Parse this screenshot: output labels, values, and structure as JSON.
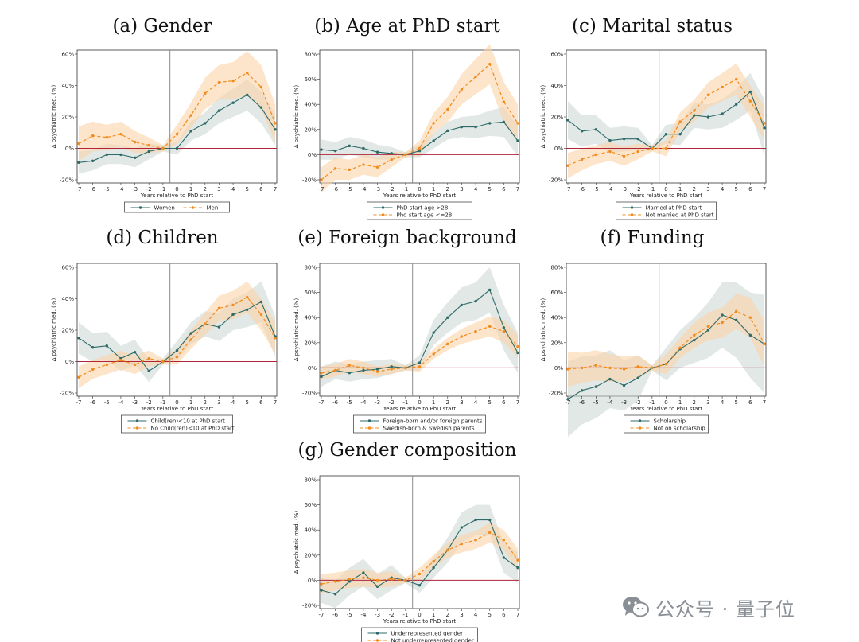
{
  "figure": {
    "xlabel": "Years relative to PhD start",
    "ylabel": "Δ psychiatric med. (%)",
    "x": [
      -7,
      -6,
      -5,
      -4,
      -3,
      -2,
      -1,
      0,
      1,
      2,
      3,
      4,
      5,
      6,
      7
    ],
    "event_line_x": -0.5,
    "colors": {
      "series_1": "#2e6b68",
      "series_2": "#f28c1e",
      "band_1": "#c9d6d2",
      "band_2": "#fbd3a8",
      "zero_line": "#b0233a",
      "event_line": "#8c8c8c",
      "frame": "#333333"
    }
  },
  "chart_data": [
    {
      "type": "line",
      "title": "(a) Gender",
      "ylim": [
        -20,
        60
      ],
      "yticks": [
        -20,
        0,
        20,
        40,
        60
      ],
      "series": [
        {
          "name": "Women",
          "values": [
            -9,
            -8,
            -4,
            -4,
            -6,
            -2,
            0,
            0,
            11,
            16,
            24,
            29,
            34,
            26,
            12
          ],
          "lower": [
            -16,
            -14,
            -10,
            -10,
            -12,
            -7,
            -2,
            -4,
            5,
            9,
            16,
            20,
            24,
            16,
            2
          ],
          "upper": [
            -2,
            -1,
            3,
            2,
            0,
            3,
            2,
            4,
            17,
            23,
            32,
            38,
            44,
            36,
            22
          ]
        },
        {
          "name": "Men",
          "values": [
            3,
            8,
            7,
            9,
            4,
            2,
            0,
            9,
            21,
            35,
            42,
            43,
            48,
            39,
            16
          ],
          "lower": [
            -8,
            -2,
            -1,
            1,
            -3,
            -3,
            -2,
            3,
            13,
            25,
            31,
            31,
            34,
            25,
            4
          ],
          "upper": [
            14,
            17,
            15,
            17,
            11,
            7,
            2,
            15,
            29,
            45,
            53,
            55,
            62,
            53,
            28
          ]
        }
      ]
    },
    {
      "type": "line",
      "title": "(b) Age at PhD start",
      "ylim": [
        -20,
        80
      ],
      "yticks": [
        -20,
        0,
        20,
        40,
        60,
        80
      ],
      "series": [
        {
          "name": "PhD start age >28",
          "values": [
            4,
            3,
            7,
            5,
            2,
            1,
            0,
            3,
            11,
            19,
            22,
            22,
            25,
            26,
            11
          ],
          "lower": [
            -4,
            -4,
            0,
            -2,
            -4,
            -4,
            -2,
            -2,
            5,
            12,
            14,
            13,
            15,
            14,
            -1
          ],
          "upper": [
            12,
            10,
            14,
            12,
            8,
            6,
            2,
            8,
            17,
            26,
            30,
            31,
            35,
            38,
            23
          ]
        },
        {
          "name": "Phd start age <=28",
          "values": [
            -20,
            -11,
            -12,
            -8,
            -10,
            -4,
            0,
            5,
            25,
            36,
            52,
            62,
            72,
            42,
            25
          ],
          "lower": [
            -30,
            -20,
            -20,
            -16,
            -18,
            -10,
            -2,
            -1,
            17,
            26,
            40,
            48,
            56,
            26,
            10
          ],
          "upper": [
            -10,
            -2,
            -4,
            0,
            -2,
            2,
            2,
            11,
            33,
            46,
            64,
            76,
            88,
            58,
            40
          ]
        }
      ]
    },
    {
      "type": "line",
      "title": "(c) Marital status",
      "ylim": [
        -20,
        60
      ],
      "yticks": [
        -20,
        0,
        20,
        40,
        60
      ],
      "series": [
        {
          "name": "Married at PhD start",
          "values": [
            18,
            11,
            12,
            5,
            6,
            6,
            0,
            9,
            9,
            21,
            20,
            22,
            28,
            36,
            13
          ],
          "lower": [
            6,
            1,
            3,
            -3,
            -2,
            -1,
            -2,
            3,
            2,
            13,
            12,
            13,
            18,
            24,
            -5
          ],
          "upper": [
            30,
            21,
            21,
            13,
            14,
            13,
            2,
            15,
            16,
            29,
            28,
            31,
            38,
            48,
            31
          ]
        },
        {
          "name": "Not married at PhD start",
          "values": [
            -11,
            -7,
            -4,
            -2,
            -5,
            -2,
            0,
            0,
            17,
            24,
            34,
            39,
            44,
            30,
            16
          ],
          "lower": [
            -19,
            -14,
            -10,
            -8,
            -11,
            -7,
            -2,
            -5,
            11,
            17,
            26,
            30,
            34,
            20,
            5
          ],
          "upper": [
            -3,
            0,
            2,
            4,
            1,
            3,
            2,
            5,
            23,
            31,
            42,
            48,
            54,
            40,
            27
          ]
        }
      ]
    },
    {
      "type": "line",
      "title": "(d) Children",
      "ylim": [
        -20,
        60
      ],
      "yticks": [
        -20,
        0,
        20,
        40,
        60
      ],
      "series": [
        {
          "name": "Child(ren)<10 at PhD start",
          "values": [
            15,
            9,
            10,
            2,
            6,
            -6,
            0,
            7,
            18,
            24,
            22,
            30,
            33,
            38,
            16
          ],
          "lower": [
            5,
            0,
            1,
            -6,
            -2,
            -13,
            -2,
            1,
            11,
            16,
            13,
            20,
            22,
            25,
            3
          ],
          "upper": [
            25,
            18,
            19,
            10,
            14,
            1,
            2,
            13,
            25,
            32,
            31,
            40,
            44,
            51,
            29
          ]
        },
        {
          "name": "No Child(ren)<10 at PhD start",
          "values": [
            -10,
            -5,
            -2,
            1,
            -2,
            2,
            0,
            3,
            14,
            24,
            34,
            36,
            41,
            30,
            15
          ],
          "lower": [
            -17,
            -11,
            -8,
            -5,
            -8,
            -3,
            -2,
            -2,
            8,
            17,
            26,
            27,
            31,
            20,
            5
          ],
          "upper": [
            -3,
            1,
            4,
            7,
            4,
            7,
            2,
            8,
            20,
            31,
            42,
            45,
            51,
            40,
            25
          ]
        }
      ]
    },
    {
      "type": "line",
      "title": "(e) Foreign background",
      "ylim": [
        -20,
        80
      ],
      "yticks": [
        -20,
        0,
        20,
        40,
        60,
        80
      ],
      "series": [
        {
          "name": "Foreign-born and/or foreign parents",
          "values": [
            -7,
            -2,
            -4,
            -2,
            -1,
            1,
            0,
            4,
            28,
            40,
            50,
            53,
            62,
            32,
            12
          ],
          "lower": [
            -15,
            -9,
            -11,
            -9,
            -8,
            -5,
            -2,
            -2,
            18,
            28,
            36,
            38,
            44,
            14,
            -4
          ],
          "upper": [
            1,
            5,
            3,
            5,
            6,
            7,
            2,
            10,
            38,
            52,
            64,
            68,
            80,
            50,
            28
          ]
        },
        {
          "name": "Swedish-born & Swedish parents",
          "values": [
            -4,
            -2,
            2,
            0,
            -3,
            -1,
            0,
            1,
            11,
            19,
            25,
            29,
            33,
            29,
            17
          ],
          "lower": [
            -9,
            -7,
            -3,
            -5,
            -7,
            -5,
            -2,
            -3,
            7,
            14,
            19,
            22,
            25,
            20,
            8
          ],
          "upper": [
            1,
            3,
            7,
            5,
            1,
            3,
            2,
            5,
            15,
            24,
            31,
            36,
            41,
            38,
            26
          ]
        }
      ]
    },
    {
      "type": "line",
      "title": "(f) Funding",
      "ylim": [
        -20,
        80
      ],
      "yticks": [
        -20,
        0,
        20,
        40,
        60,
        80
      ],
      "series": [
        {
          "name": "Scholarship",
          "values": [
            -25,
            -18,
            -15,
            -9,
            -14,
            -8,
            0,
            3,
            15,
            22,
            30,
            42,
            38,
            26,
            19
          ],
          "lower": [
            -55,
            -45,
            -40,
            -32,
            -34,
            -26,
            -2,
            -10,
            0,
            4,
            8,
            16,
            8,
            -8,
            -20
          ],
          "upper": [
            5,
            9,
            10,
            14,
            6,
            10,
            2,
            16,
            30,
            40,
            52,
            68,
            68,
            60,
            58
          ]
        },
        {
          "name": "Not on scholarship",
          "values": [
            -1,
            0,
            2,
            0,
            -1,
            1,
            0,
            3,
            16,
            26,
            33,
            36,
            45,
            40,
            19
          ],
          "lower": [
            -15,
            -12,
            -10,
            -11,
            -11,
            -8,
            -2,
            -5,
            8,
            16,
            22,
            24,
            31,
            24,
            1
          ],
          "upper": [
            13,
            12,
            14,
            11,
            9,
            10,
            2,
            11,
            24,
            36,
            44,
            48,
            59,
            56,
            37
          ]
        }
      ]
    },
    {
      "type": "line",
      "title": "(g) Gender composition",
      "ylim": [
        -20,
        80
      ],
      "yticks": [
        -20,
        0,
        20,
        40,
        60,
        80
      ],
      "series": [
        {
          "name": "Underrepresented gender",
          "values": [
            -8,
            -11,
            -1,
            6,
            -5,
            2,
            0,
            -4,
            10,
            24,
            42,
            48,
            48,
            18,
            10
          ],
          "lower": [
            -18,
            -22,
            -12,
            -5,
            -15,
            -8,
            -2,
            -10,
            2,
            14,
            30,
            36,
            36,
            6,
            -2
          ],
          "upper": [
            2,
            0,
            10,
            17,
            5,
            12,
            2,
            2,
            18,
            34,
            54,
            60,
            60,
            30,
            22
          ]
        },
        {
          "name": "Not underrepresented gender",
          "values": [
            -3,
            -1,
            1,
            2,
            0,
            1,
            0,
            5,
            15,
            24,
            29,
            32,
            38,
            32,
            16
          ],
          "lower": [
            -11,
            -8,
            -6,
            -5,
            -6,
            -5,
            -2,
            0,
            10,
            18,
            22,
            25,
            30,
            24,
            7
          ],
          "upper": [
            5,
            6,
            8,
            9,
            6,
            7,
            2,
            10,
            20,
            30,
            36,
            39,
            46,
            40,
            25
          ]
        }
      ]
    }
  ],
  "watermark": {
    "text": "公众号 · 量子位",
    "icon": "wechat-icon"
  }
}
